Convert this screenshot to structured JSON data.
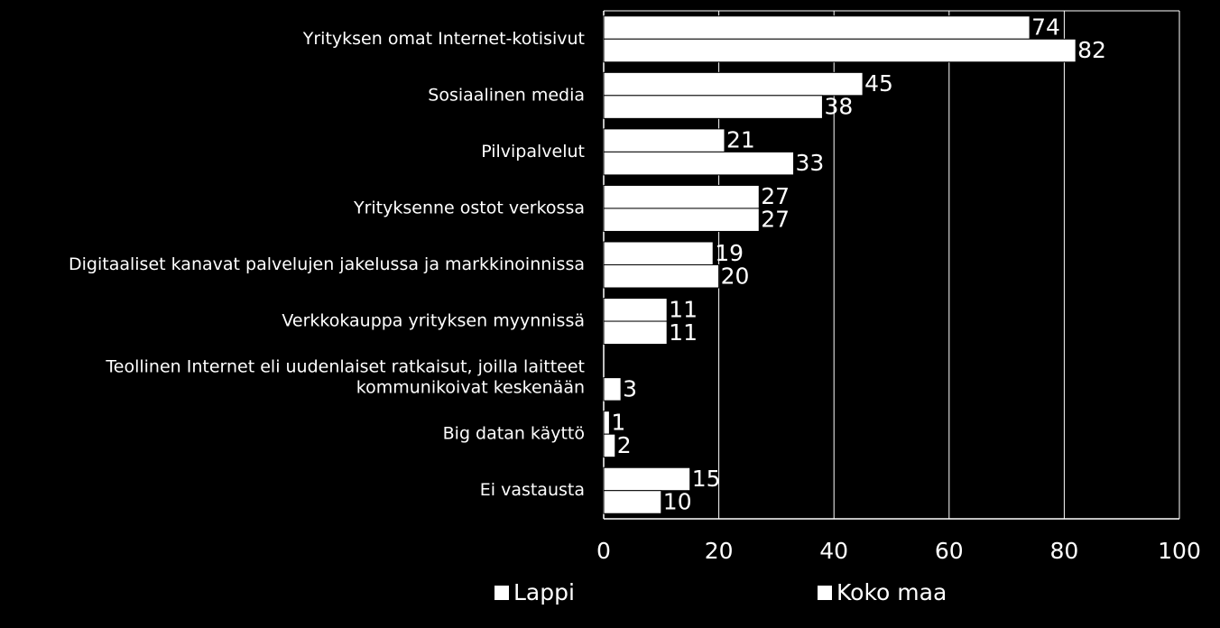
{
  "chart_data": {
    "type": "bar",
    "orientation": "horizontal",
    "categories": [
      [
        "Yrityksen omat Internet-kotisivut"
      ],
      [
        "Sosiaalinen media"
      ],
      [
        "Pilvipalvelut"
      ],
      [
        "Yrityksenne ostot verkossa"
      ],
      [
        "Digitaaliset kanavat palvelujen jakelussa ja markkinoinnissa"
      ],
      [
        "Verkkokauppa yrityksen myynnissä"
      ],
      [
        "Teollinen Internet eli uudenlaiset ratkaisut, joilla laitteet",
        "kommunikoivat keskenään"
      ],
      [
        "Big datan käyttö"
      ],
      [
        "Ei vastausta"
      ]
    ],
    "series": [
      {
        "name": "Lappi",
        "values": [
          74,
          45,
          21,
          27,
          19,
          11,
          0,
          1,
          15
        ],
        "labels": [
          "74",
          "45",
          "21",
          "27",
          "19",
          "11",
          "",
          "1",
          "15"
        ]
      },
      {
        "name": "Koko maa",
        "values": [
          82,
          38,
          33,
          27,
          20,
          11,
          3,
          2,
          10
        ],
        "labels": [
          "82",
          "38",
          "33",
          "27",
          "20",
          "11",
          "3",
          "2",
          "10"
        ]
      }
    ],
    "xlim": [
      0,
      100
    ],
    "xticks": [
      0,
      20,
      40,
      60,
      80,
      100
    ],
    "grid": true,
    "legend_position": "bottom",
    "colors": {
      "background": "#000000",
      "bar_fill": "#ffffff",
      "bar_stroke": "#000000",
      "grid": "#ffffff",
      "text": "#ffffff"
    }
  }
}
